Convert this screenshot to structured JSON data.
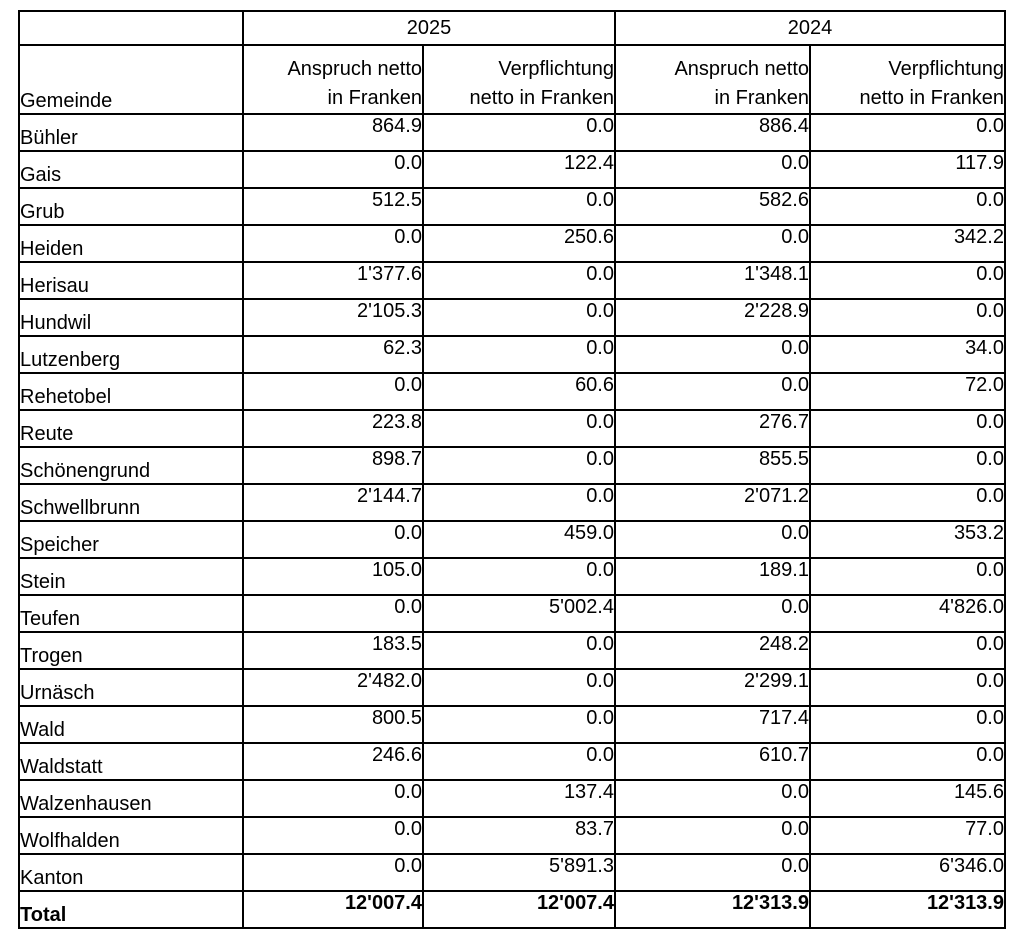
{
  "table": {
    "header": {
      "year_2025": "2025",
      "year_2024": "2024",
      "gemeinde_label": "Gemeinde",
      "anspruch_line1": "Anspruch netto",
      "anspruch_line2": "in Franken",
      "verpflichtung_line1": "Verpflichtung",
      "verpflichtung_line2": "netto in Franken"
    },
    "rows": [
      {
        "name": "Bühler",
        "values": [
          "864.9",
          "0.0",
          "886.4",
          "0.0"
        ]
      },
      {
        "name": "Gais",
        "values": [
          "0.0",
          "122.4",
          "0.0",
          "117.9"
        ]
      },
      {
        "name": "Grub",
        "values": [
          "512.5",
          "0.0",
          "582.6",
          "0.0"
        ]
      },
      {
        "name": "Heiden",
        "values": [
          "0.0",
          "250.6",
          "0.0",
          "342.2"
        ]
      },
      {
        "name": "Herisau",
        "values": [
          "1'377.6",
          "0.0",
          "1'348.1",
          "0.0"
        ]
      },
      {
        "name": "Hundwil",
        "values": [
          "2'105.3",
          "0.0",
          "2'228.9",
          "0.0"
        ]
      },
      {
        "name": "Lutzenberg",
        "values": [
          "62.3",
          "0.0",
          "0.0",
          "34.0"
        ]
      },
      {
        "name": "Rehetobel",
        "values": [
          "0.0",
          "60.6",
          "0.0",
          "72.0"
        ]
      },
      {
        "name": "Reute",
        "values": [
          "223.8",
          "0.0",
          "276.7",
          "0.0"
        ]
      },
      {
        "name": "Schönengrund",
        "values": [
          "898.7",
          "0.0",
          "855.5",
          "0.0"
        ]
      },
      {
        "name": "Schwellbrunn",
        "values": [
          "2'144.7",
          "0.0",
          "2'071.2",
          "0.0"
        ]
      },
      {
        "name": "Speicher",
        "values": [
          "0.0",
          "459.0",
          "0.0",
          "353.2"
        ]
      },
      {
        "name": "Stein",
        "values": [
          "105.0",
          "0.0",
          "189.1",
          "0.0"
        ]
      },
      {
        "name": "Teufen",
        "values": [
          "0.0",
          "5'002.4",
          "0.0",
          "4'826.0"
        ]
      },
      {
        "name": "Trogen",
        "values": [
          "183.5",
          "0.0",
          "248.2",
          "0.0"
        ]
      },
      {
        "name": "Urnäsch",
        "values": [
          "2'482.0",
          "0.0",
          "2'299.1",
          "0.0"
        ]
      },
      {
        "name": "Wald",
        "values": [
          "800.5",
          "0.0",
          "717.4",
          "0.0"
        ]
      },
      {
        "name": "Waldstatt",
        "values": [
          "246.6",
          "0.0",
          "610.7",
          "0.0"
        ]
      },
      {
        "name": "Walzenhausen",
        "values": [
          "0.0",
          "137.4",
          "0.0",
          "145.6"
        ]
      },
      {
        "name": "Wolfhalden",
        "values": [
          "0.0",
          "83.7",
          "0.0",
          "77.0"
        ]
      },
      {
        "name": "Kanton",
        "values": [
          "0.0",
          "5'891.3",
          "0.0",
          "6'346.0"
        ]
      }
    ],
    "total_row": {
      "name": "Total",
      "values": [
        "12'007.4",
        "12'007.4",
        "12'313.9",
        "12'313.9"
      ]
    }
  },
  "colors": {
    "border": "#000000",
    "background": "#ffffff",
    "text": "#000000"
  }
}
